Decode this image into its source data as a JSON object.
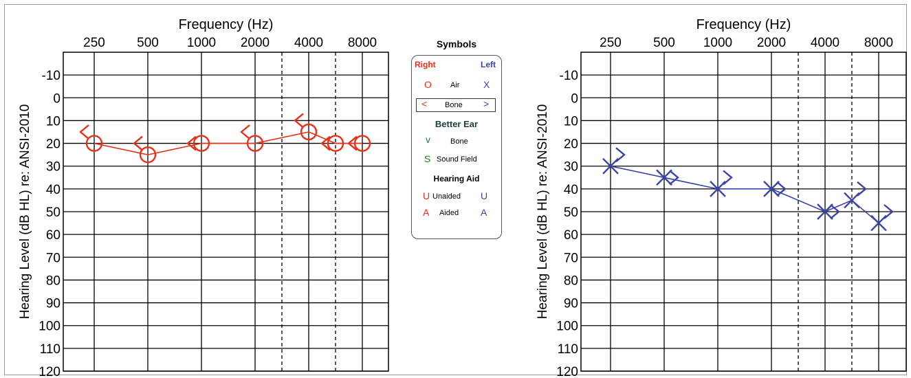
{
  "colors": {
    "right": "#e8311a",
    "left": "#3a44a8",
    "better_ear": "#1f7a30",
    "grid": "#000000"
  },
  "chart_data": [
    {
      "type": "line",
      "ear": "Right",
      "xlabel": "Frequency (Hz)",
      "ylabel": "Hearing Level  (dB HL)  re: ANSI-2010",
      "x_ticks": [
        "250",
        "500",
        "1000",
        "2000",
        "4000",
        "8000"
      ],
      "x_intermediate": [
        "3000",
        "6000"
      ],
      "y_ticks": [
        "-10",
        "0",
        "10",
        "20",
        "30",
        "40",
        "50",
        "60",
        "70",
        "80",
        "90",
        "100",
        "110",
        "120"
      ],
      "ylim": [
        -20,
        120
      ],
      "y_inverted": true,
      "series": [
        {
          "name": "Air",
          "symbol": "O",
          "points": [
            {
              "x": "250",
              "y": 20
            },
            {
              "x": "500",
              "y": 25
            },
            {
              "x": "1000",
              "y": 20
            },
            {
              "x": "2000",
              "y": 20
            },
            {
              "x": "4000",
              "y": 15
            },
            {
              "x": "6000",
              "y": 20
            },
            {
              "x": "8000",
              "y": 20
            }
          ]
        },
        {
          "name": "Bone",
          "symbol": "<",
          "points": [
            {
              "x": "250",
              "y": 15
            },
            {
              "x": "500",
              "y": 20
            },
            {
              "x": "1000",
              "y": 20
            },
            {
              "x": "2000",
              "y": 15
            },
            {
              "x": "4000",
              "y": 10
            },
            {
              "x": "6000",
              "y": 20
            },
            {
              "x": "8000",
              "y": 20
            }
          ]
        }
      ]
    },
    {
      "type": "line",
      "ear": "Left",
      "xlabel": "Frequency (Hz)",
      "ylabel": "Hearing Level  (dB HL)  re: ANSI-2010",
      "x_ticks": [
        "250",
        "500",
        "1000",
        "2000",
        "4000",
        "8000"
      ],
      "x_intermediate": [
        "3000",
        "6000"
      ],
      "y_ticks": [
        "-10",
        "0",
        "10",
        "20",
        "30",
        "40",
        "50",
        "60",
        "70",
        "80",
        "90",
        "100",
        "110",
        "120"
      ],
      "ylim": [
        -20,
        120
      ],
      "y_inverted": true,
      "series": [
        {
          "name": "Air",
          "symbol": "X",
          "points": [
            {
              "x": "250",
              "y": 30
            },
            {
              "x": "500",
              "y": 35
            },
            {
              "x": "1000",
              "y": 40
            },
            {
              "x": "2000",
              "y": 40
            },
            {
              "x": "4000",
              "y": 50
            },
            {
              "x": "6000",
              "y": 45
            },
            {
              "x": "8000",
              "y": 55
            }
          ]
        },
        {
          "name": "Bone",
          "symbol": ">",
          "points": [
            {
              "x": "250",
              "y": 25
            },
            {
              "x": "500",
              "y": 35
            },
            {
              "x": "1000",
              "y": 35
            },
            {
              "x": "2000",
              "y": 40
            },
            {
              "x": "4000",
              "y": 50
            },
            {
              "x": "6000",
              "y": 40
            },
            {
              "x": "8000",
              "y": 50
            }
          ]
        }
      ]
    }
  ],
  "legend": {
    "title": "Symbols",
    "right_label": "Right",
    "left_label": "Left",
    "rows": {
      "air": {
        "label": "Air",
        "right_symbol": "O",
        "left_symbol": "X"
      },
      "bone": {
        "label": "Bone",
        "right_symbol": "<",
        "left_symbol": ">"
      },
      "better_ear_title": "Better Ear",
      "be_bone": {
        "label": "Bone",
        "symbol": "v"
      },
      "sound_field": {
        "label": "Sound Field",
        "symbol": "S"
      },
      "hearing_aid_title": "Hearing Aid",
      "unaided": {
        "label": "Unaided",
        "right_symbol": "U",
        "left_symbol": "U"
      },
      "aided": {
        "label": "Aided",
        "right_symbol": "A",
        "left_symbol": "A"
      }
    }
  }
}
